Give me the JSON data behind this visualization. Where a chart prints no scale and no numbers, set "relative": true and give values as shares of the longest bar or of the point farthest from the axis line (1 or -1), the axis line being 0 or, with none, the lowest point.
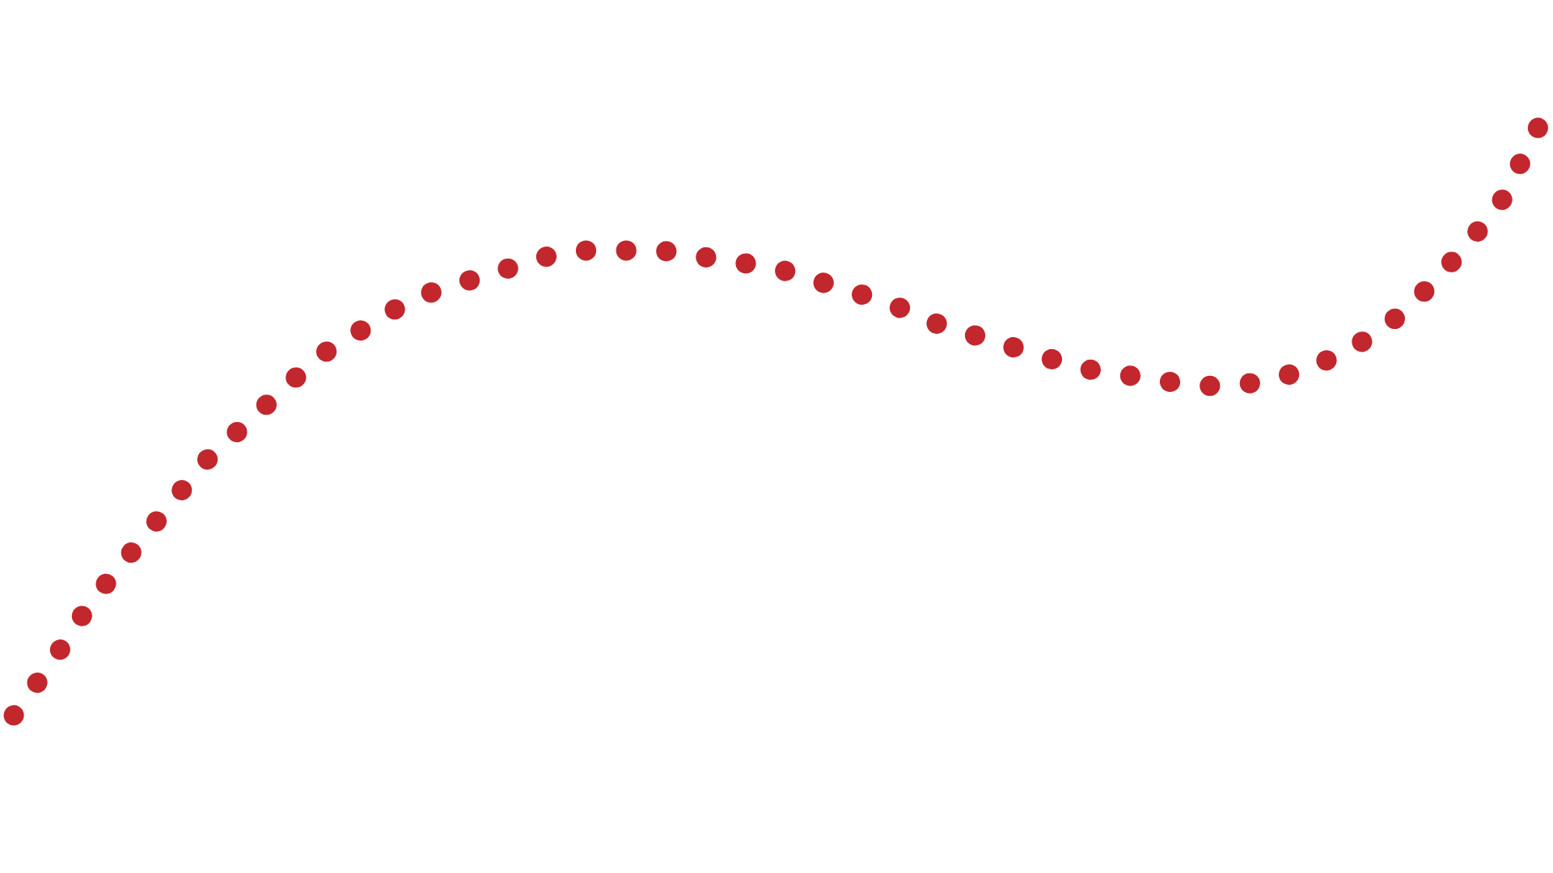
{
  "chart_data": {
    "type": "line",
    "relative": true,
    "line_style": "dotted",
    "categories": [
      null,
      null,
      null,
      null,
      null,
      null,
      null,
      null,
      null,
      null,
      null,
      null,
      null,
      null,
      null,
      null,
      null,
      null,
      null,
      null,
      null,
      null,
      null,
      null,
      null,
      null,
      null,
      null,
      null,
      null,
      null,
      null,
      null,
      null,
      null,
      null,
      null,
      null,
      null,
      null,
      null
    ],
    "series": [
      {
        "color": "#c1272d",
        "values": [
          0,
          0.09,
          0.19,
          0.27,
          0.35,
          0.43,
          0.49,
          0.55,
          0.61,
          0.65,
          0.69,
          0.72,
          0.74,
          0.76,
          0.78,
          0.79,
          0.79,
          0.79,
          0.78,
          0.77,
          0.76,
          0.74,
          0.72,
          0.7,
          0.67,
          0.65,
          0.63,
          0.61,
          0.59,
          0.58,
          0.57,
          0.56,
          0.56,
          0.57,
          0.59,
          0.62,
          0.66,
          0.72,
          0.79,
          0.87,
          1
        ]
      }
    ]
  }
}
